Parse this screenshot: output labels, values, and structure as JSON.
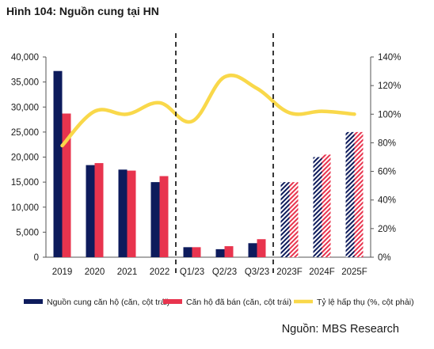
{
  "figure": {
    "title": "Hình 104: Nguồn cung tại HN",
    "source": "Nguồn: MBS Research"
  },
  "chart_data": {
    "type": "bar",
    "categories": [
      "2019",
      "2020",
      "2021",
      "2022",
      "Q1/23",
      "Q2/23",
      "Q3/23",
      "2023F",
      "2024F",
      "2025F"
    ],
    "forecast_categories": [
      "2023F",
      "2024F",
      "2025F"
    ],
    "series": [
      {
        "name": "Nguồn cung căn hộ (căn, cột trái)",
        "kind": "bar",
        "axis": "left",
        "color": "#0d1b5c",
        "values": [
          37200,
          18400,
          17500,
          15000,
          2000,
          1600,
          2800,
          15000,
          20000,
          25000
        ]
      },
      {
        "name": "Căn hộ đã bán (căn, cột trái)",
        "kind": "bar",
        "axis": "left",
        "color": "#e8344e",
        "values": [
          28700,
          18800,
          17300,
          16200,
          2000,
          2200,
          3600,
          15000,
          20500,
          25000
        ]
      },
      {
        "name": "Tỷ lệ hấp thụ (%, cột phải)",
        "kind": "line",
        "axis": "right",
        "color": "#f9d84a",
        "values": [
          78,
          102,
          100,
          108,
          95,
          126,
          118,
          101,
          102,
          100
        ]
      }
    ],
    "y_left": {
      "min": 0,
      "max": 40000,
      "step": 5000,
      "tick_labels": [
        "0",
        "5,000",
        "10,000",
        "15,000",
        "20,000",
        "25,000",
        "30,000",
        "35,000",
        "40,000"
      ]
    },
    "y_right": {
      "min": 0,
      "max": 140,
      "step": 20,
      "tick_labels": [
        "0%",
        "20%",
        "40%",
        "60%",
        "80%",
        "100%",
        "120%",
        "140%"
      ]
    },
    "separators_after": [
      "2022",
      "Q3/23"
    ],
    "legend_position": "bottom",
    "grid": false
  }
}
